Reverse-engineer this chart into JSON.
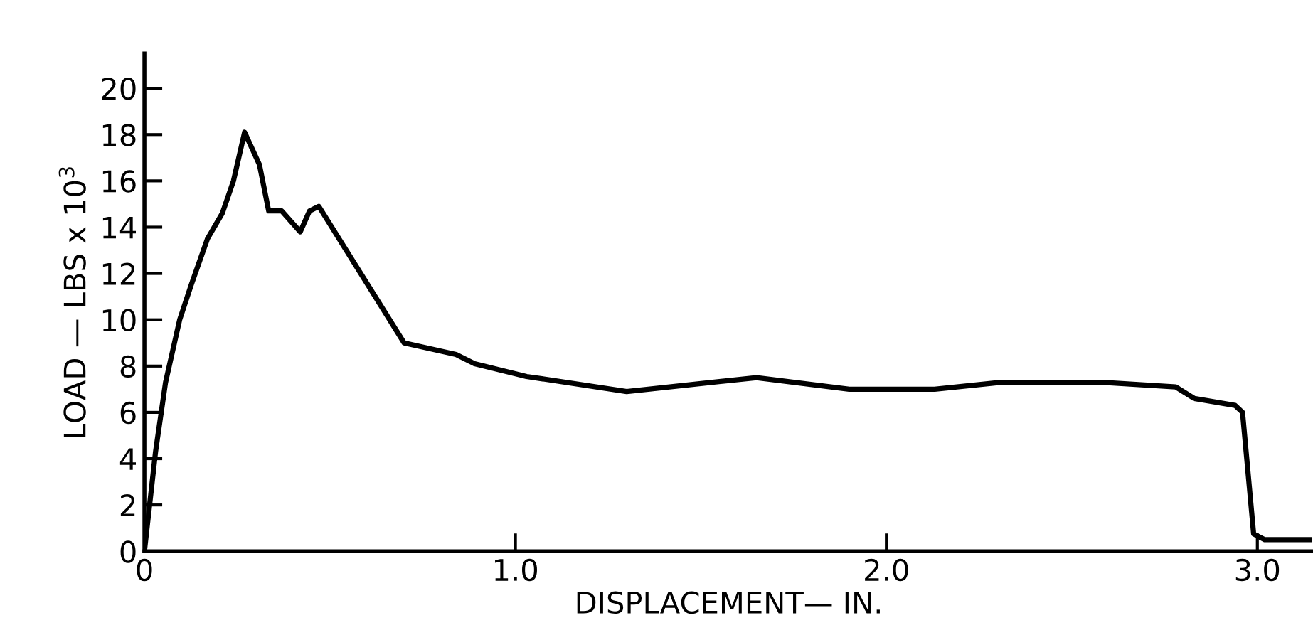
{
  "chart_data": {
    "type": "line",
    "xlabel": "DISPLACEMENT— IN.",
    "ylabel": "LOAD — LBS x 10$^{3}$",
    "x": [
      0,
      0.03,
      0.057,
      0.095,
      0.126,
      0.17,
      0.21,
      0.24,
      0.27,
      0.31,
      0.335,
      0.37,
      0.42,
      0.445,
      0.47,
      0.7,
      0.84,
      0.89,
      1.03,
      1.3,
      1.65,
      1.9,
      2.13,
      2.31,
      2.58,
      2.78,
      2.83,
      2.94,
      2.96,
      2.99,
      3.02,
      3.14
    ],
    "series": [
      {
        "color": "#000000",
        "values": [
          0,
          4.3,
          7.3,
          10.0,
          11.5,
          13.5,
          14.6,
          16.0,
          18.1,
          16.7,
          14.7,
          14.7,
          13.8,
          14.7,
          14.9,
          9.0,
          8.5,
          8.1,
          7.55,
          6.9,
          7.5,
          7.0,
          7.0,
          7.3,
          7.3,
          7.1,
          6.6,
          6.3,
          6.0,
          0.75,
          0.5,
          0.5
        ]
      }
    ],
    "xlim": [
      0,
      3.15
    ],
    "ylim": [
      0,
      21.5
    ],
    "xticks": [
      0,
      {
        "value": 1.0,
        "label": "1.0"
      },
      {
        "value": 2.0,
        "label": "2.0"
      },
      {
        "value": 3.0,
        "label": "3.0"
      }
    ],
    "yticks": [
      0,
      2,
      4,
      6,
      8,
      10,
      12,
      14,
      16,
      18,
      20
    ],
    "grid": false,
    "legend": false,
    "marker": "none",
    "line_style": "solid"
  }
}
